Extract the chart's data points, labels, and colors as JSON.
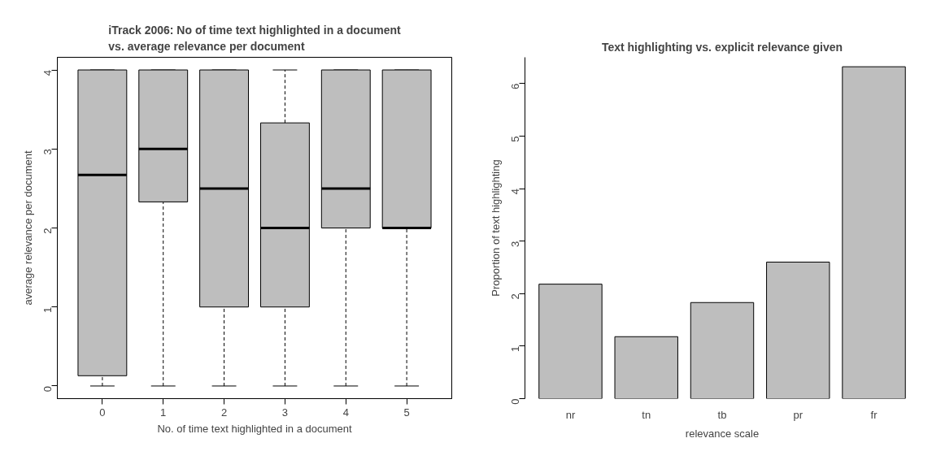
{
  "chart_data": [
    {
      "type": "box",
      "title": "iTrack 2006: No of time text highlighted in a document\nvs. average relevance per document",
      "xlabel": "No. of time text highlighted in a document",
      "ylabel": "average relevance per document",
      "categories": [
        "0",
        "1",
        "2",
        "3",
        "4",
        "5"
      ],
      "color": "#bebebe",
      "ylim": [
        -0.16,
        4.16
      ],
      "yticks": [
        0,
        1,
        2,
        3,
        4
      ],
      "boxes": [
        {
          "low": 0,
          "q1": 0.13,
          "median": 2.67,
          "q3": 4,
          "high": 4
        },
        {
          "low": 0,
          "q1": 2.33,
          "median": 3,
          "q3": 4,
          "high": 4
        },
        {
          "low": 0,
          "q1": 1,
          "median": 2.5,
          "q3": 4,
          "high": 4
        },
        {
          "low": 0,
          "q1": 1,
          "median": 2,
          "q3": 3.33,
          "high": 4
        },
        {
          "low": 0,
          "q1": 2,
          "median": 2.5,
          "q3": 4,
          "high": 4
        },
        {
          "low": 0,
          "q1": 2,
          "median": 2,
          "q3": 4,
          "high": 4
        }
      ]
    },
    {
      "type": "bar",
      "title": "Text highlighting vs. explicit relevance given",
      "xlabel": "relevance scale",
      "ylabel": "Proportion of text highlighting",
      "categories": [
        "nr",
        "tn",
        "tb",
        "pr",
        "fr"
      ],
      "color": "#bebebe",
      "ylim": [
        0,
        6.5
      ],
      "yticks": [
        0,
        1,
        2,
        3,
        4,
        5,
        6
      ],
      "values": [
        2.18,
        1.18,
        1.83,
        2.6,
        6.32
      ]
    }
  ]
}
